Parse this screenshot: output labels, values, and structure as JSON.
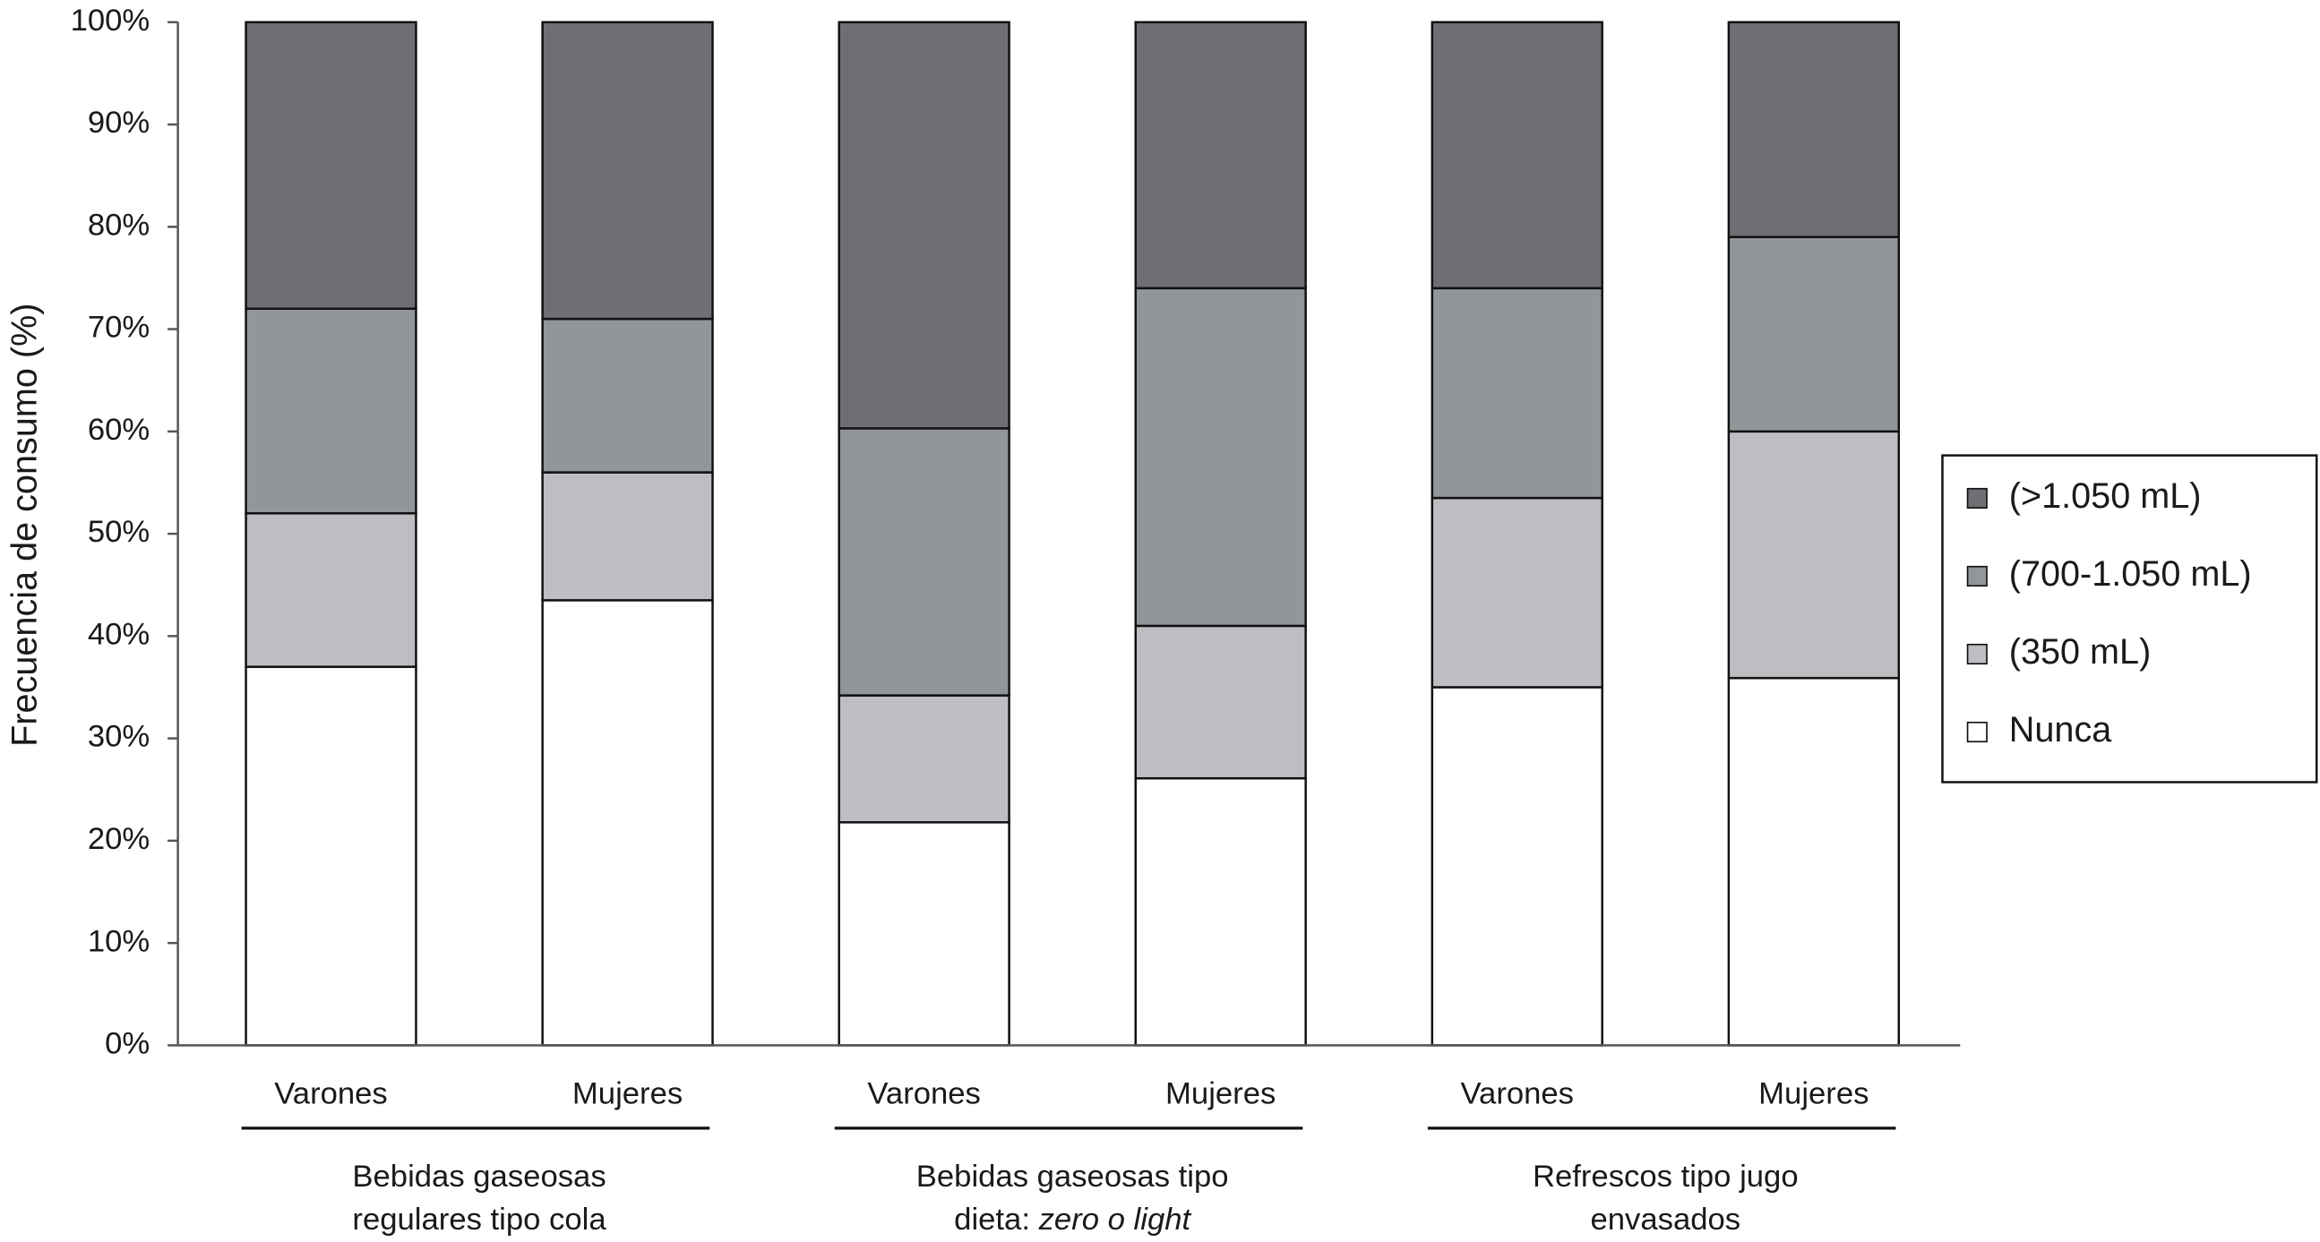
{
  "chart_data": {
    "type": "stacked_bar",
    "y_label": "Frecuencia de consumo (%)",
    "categories": [
      "Varones",
      "Mujeres",
      "Varones",
      "Mujeres",
      "Varones",
      "Mujeres"
    ],
    "groups": [
      {
        "lines": [
          [
            "Bebidas gaseosas"
          ],
          [
            "regulares tipo cola"
          ]
        ]
      },
      {
        "lines": [
          [
            "Bebidas gaseosas tipo"
          ],
          [
            "dieta: ",
            {
              "text": "zero o light",
              "italic": true
            }
          ]
        ]
      },
      {
        "lines": [
          [
            "Refrescos tipo jugo"
          ],
          [
            "envasados"
          ]
        ]
      }
    ],
    "series": [
      {
        "name": "Nunca",
        "color": "#ffffff",
        "values": [
          37,
          43.5,
          21.8,
          26.1,
          35,
          35.9
        ]
      },
      {
        "name": "(350 mL)",
        "color": "#bdbec2",
        "values": [
          15,
          12.5,
          12.4,
          14.9,
          18.5,
          24.1
        ]
      },
      {
        "name": "(700-1.050 mL)",
        "color": "#939699",
        "values": [
          20,
          15,
          26.1,
          33,
          20.5,
          19
        ]
      },
      {
        "name": "(>1.050 mL)",
        "color": "#6e6f73",
        "values": [
          28,
          29,
          39.7,
          26,
          26,
          21
        ]
      }
    ],
    "ylim": [
      0,
      100
    ],
    "yticks": [
      {
        "value": 0,
        "label": "0%"
      },
      {
        "value": 10,
        "label": "10%"
      },
      {
        "value": 20,
        "label": "20%"
      },
      {
        "value": 30,
        "label": "30%"
      },
      {
        "value": 40,
        "label": "40%"
      },
      {
        "value": 50,
        "label": "50%"
      },
      {
        "value": 60,
        "label": "60%"
      },
      {
        "value": 70,
        "label": "70%"
      },
      {
        "value": 80,
        "label": "80%"
      },
      {
        "value": 90,
        "label": "90%"
      },
      {
        "value": 100,
        "label": "100%"
      }
    ],
    "legend": "right"
  }
}
